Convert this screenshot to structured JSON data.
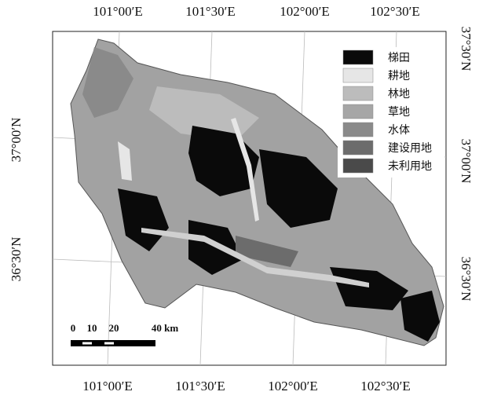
{
  "map": {
    "coords": {
      "top": [
        "101°00′E",
        "101°30′E",
        "102°00′E",
        "102°30′E"
      ],
      "bottom": [
        "101°00′E",
        "101°30′E",
        "102°00′E",
        "102°30′E"
      ],
      "left": [
        "37°00′N",
        "36°30′N"
      ],
      "right": [
        "37°30′N",
        "37°00′N",
        "36°30′N"
      ]
    },
    "legend": [
      {
        "label": "梯田",
        "color": "#0a0a0a"
      },
      {
        "label": "耕地",
        "color": "#e6e6e6"
      },
      {
        "label": "林地",
        "color": "#bcbcbc"
      },
      {
        "label": "草地",
        "color": "#a6a6a6"
      },
      {
        "label": "水体",
        "color": "#8a8a8a"
      },
      {
        "label": "建设用地",
        "color": "#6c6c6c"
      },
      {
        "label": "未利用地",
        "color": "#4a4a4a"
      }
    ],
    "scale_bar": [
      "0",
      "10",
      "20",
      "40 km"
    ]
  }
}
